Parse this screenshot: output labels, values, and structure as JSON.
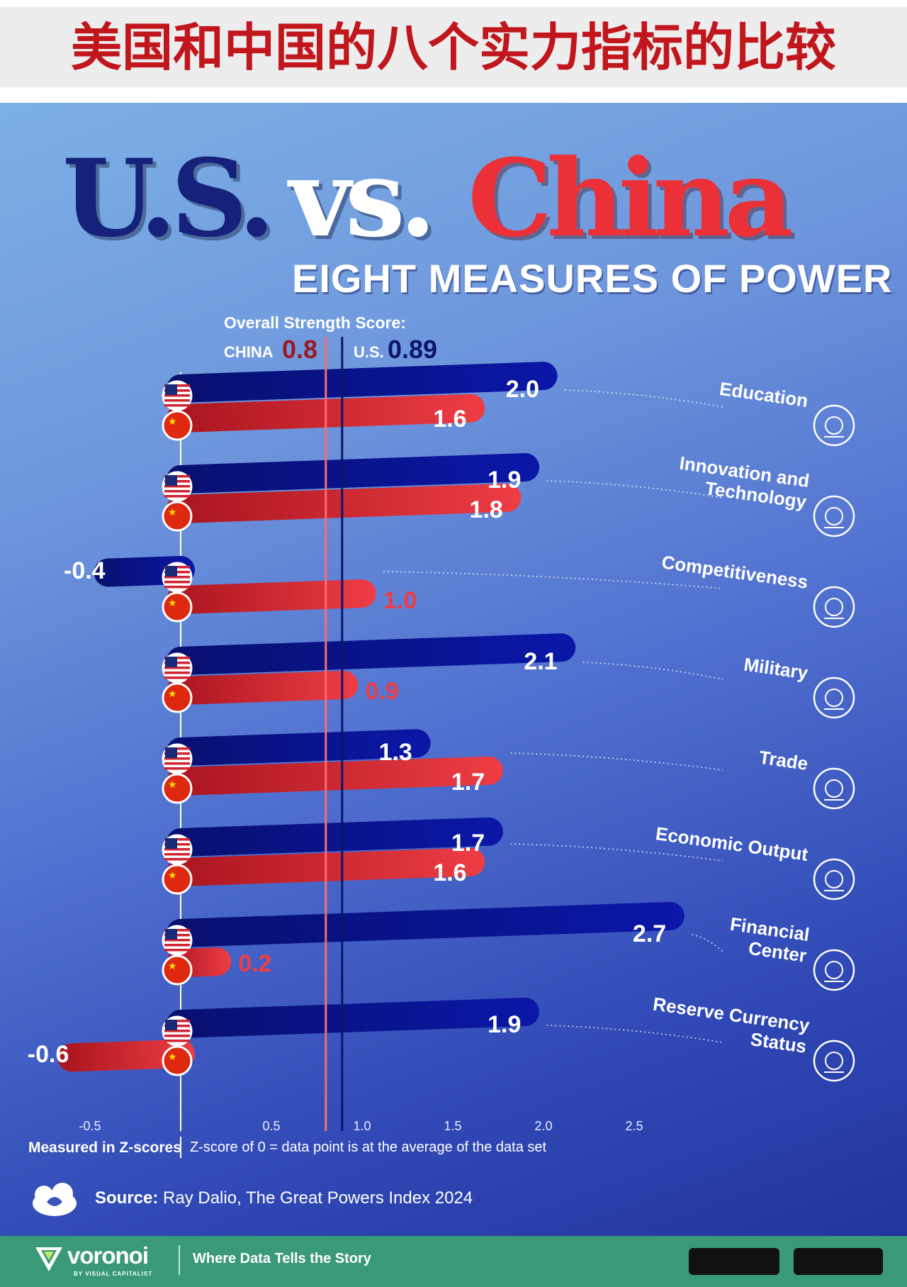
{
  "banner": {
    "title": "美国和中国的八个实力指标的比较"
  },
  "headline": {
    "us": "U.S.",
    "vs": "vs.",
    "china": "China"
  },
  "subtitle": "EIGHT MEASURES OF POWER",
  "overall": {
    "label": "Overall Strength Score:",
    "china_label": "CHINA",
    "china_value": "0.8",
    "us_label": "U.S.",
    "us_value": "0.89"
  },
  "colors": {
    "us": "#0a17a8",
    "china": "#ee3d45",
    "china_line": "#ff6a70",
    "us_line": "#0b156a"
  },
  "chart_data": {
    "type": "bar",
    "orientation": "horizontal",
    "categories": [
      "Education",
      "Innovation and Technology",
      "Competitiveness",
      "Military",
      "Trade",
      "Economic Output",
      "Financial Center",
      "Reserve Currency Status"
    ],
    "category_lines": [
      [
        "Education"
      ],
      [
        "Innovation and",
        "Technology"
      ],
      [
        "Competitiveness"
      ],
      [
        "Military"
      ],
      [
        "Trade"
      ],
      [
        "Economic Output"
      ],
      [
        "Financial",
        "Center"
      ],
      [
        "Reserve Currency",
        "Status"
      ]
    ],
    "icons": [
      "graduation-cap-icon",
      "circuit-dollar-icon",
      "trophy-icon",
      "tank-icon",
      "cargo-ship-icon",
      "money-bag-hand-icon",
      "bank-dollar-icon",
      "cash-stack-icon"
    ],
    "series": [
      {
        "name": "U.S.",
        "values": [
          2.0,
          1.9,
          -0.4,
          2.1,
          1.3,
          1.7,
          2.7,
          1.9
        ],
        "labels": [
          "2.0",
          "1.9",
          "-0.4",
          "2.1",
          "1.3",
          "1.7",
          "2.7",
          "1.9"
        ]
      },
      {
        "name": "China",
        "values": [
          1.6,
          1.8,
          1.0,
          0.9,
          1.7,
          1.6,
          0.2,
          -0.6
        ],
        "labels": [
          "1.6",
          "1.8",
          "1.0",
          "0.9",
          "1.7",
          "1.6",
          "0.2",
          "-0.6"
        ]
      }
    ],
    "x_ticks": [
      -0.5,
      0.5,
      1.0,
      1.5,
      2.0,
      2.5
    ],
    "x_tick_labels": [
      "-0.5",
      "0.5",
      "1.0",
      "1.5",
      "2.0",
      "2.5"
    ],
    "xlim": [
      -0.6,
      2.7
    ],
    "reference_lines": [
      {
        "name": "China",
        "value": 0.8
      },
      {
        "name": "U.S.",
        "value": 0.89
      }
    ],
    "xlabel": "Measured in Z-scores",
    "note": "Z-score of 0 = data point is at the average of the data set"
  },
  "source": {
    "label": "Source:",
    "text": "Ray Dalio, The Great Powers Index 2024"
  },
  "footer": {
    "brand": "voronoi",
    "brand_sub": "BY VISUAL CAPITALIST",
    "tagline": "Where Data Tells the Story"
  }
}
